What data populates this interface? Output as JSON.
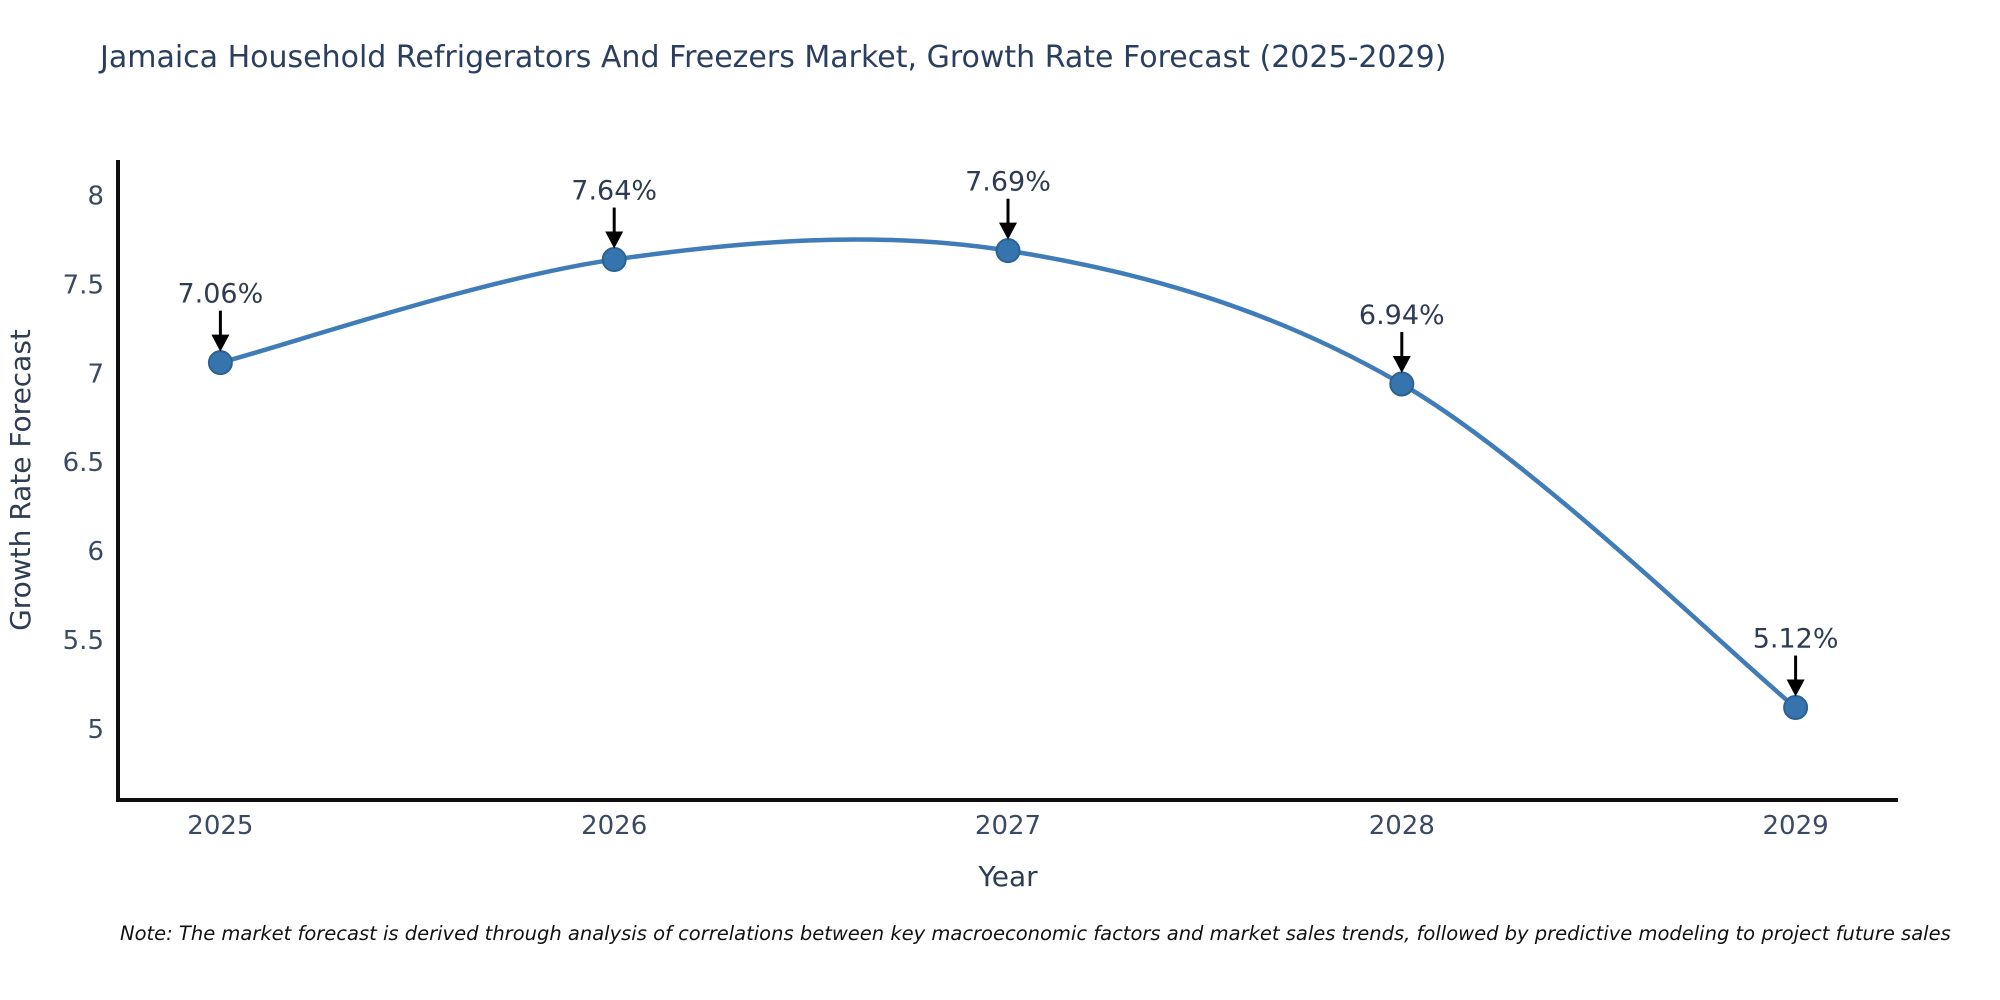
{
  "title": "Jamaica Household Refrigerators And Freezers Market, Growth Rate Forecast (2025-2029)",
  "note": "Note: The market forecast is derived through analysis of correlations between key macroeconomic factors and market sales trends, followed by predictive modeling to project future sales",
  "chart_data": {
    "type": "line",
    "x": [
      2025,
      2026,
      2027,
      2028,
      2029
    ],
    "values": [
      7.06,
      7.64,
      7.69,
      6.94,
      5.12
    ],
    "point_labels": [
      "7.06%",
      "7.64%",
      "7.69%",
      "6.94%",
      "5.12%"
    ],
    "series_name": "Growth Rate Forecast",
    "title": "Jamaica Household Refrigerators And Freezers Market, Growth Rate Forecast (2025-2029)",
    "xlabel": "Year",
    "ylabel": "Growth Rate Forecast",
    "xticks": [
      "2025",
      "2026",
      "2027",
      "2028",
      "2029"
    ],
    "yticks": [
      8,
      7.5,
      7,
      6.5,
      6,
      5.5,
      5
    ],
    "xlim": [
      2024.74,
      2029.26
    ],
    "ylim": [
      4.6,
      8.2
    ],
    "grid": false,
    "legend": false,
    "line_shape": "spline",
    "colors": {
      "line": "#3f7cb8",
      "marker_fill": "#3674ae",
      "marker_edge": "#2c6195",
      "axis_line": "#0d0d0d",
      "tick_text": "#3b4a63",
      "axis_title_text": "#2e3c54",
      "title_text": "#2a3f5f",
      "annotation_text": "#2f3b52",
      "annotation_arrow": "#000000",
      "background": "#ffffff"
    }
  }
}
